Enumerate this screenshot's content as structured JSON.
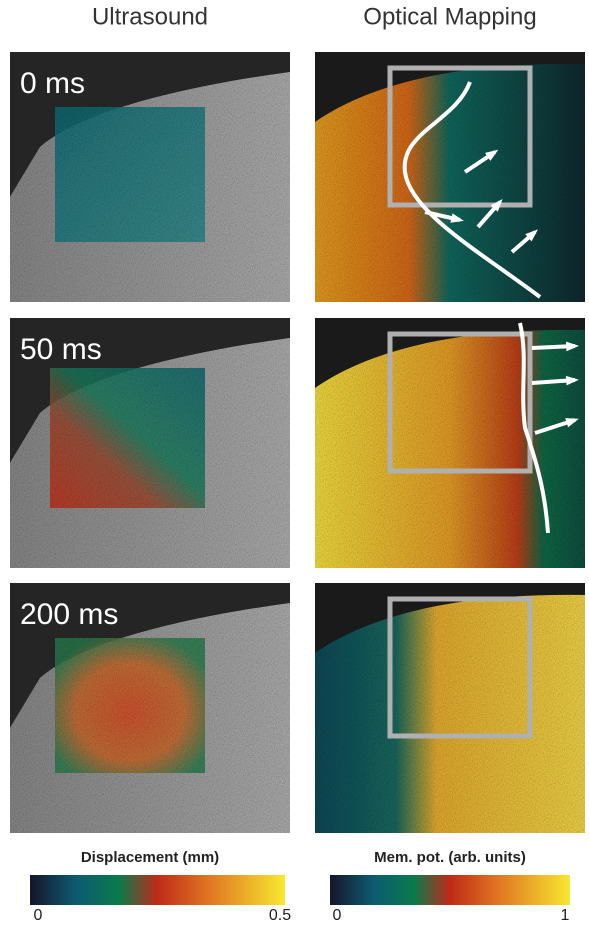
{
  "headers": [
    "Ultrasound",
    "Optical Mapping"
  ],
  "rows": [
    {
      "label": "0 ms"
    },
    {
      "label": "50 ms"
    },
    {
      "label": "200 ms"
    }
  ],
  "colorbars": [
    {
      "title": "Displacement (mm)",
      "min_label": "0",
      "max_label": "0.5"
    },
    {
      "title": "Mem. pot. (arb. units)",
      "min_label": "0",
      "max_label": "1"
    }
  ]
}
